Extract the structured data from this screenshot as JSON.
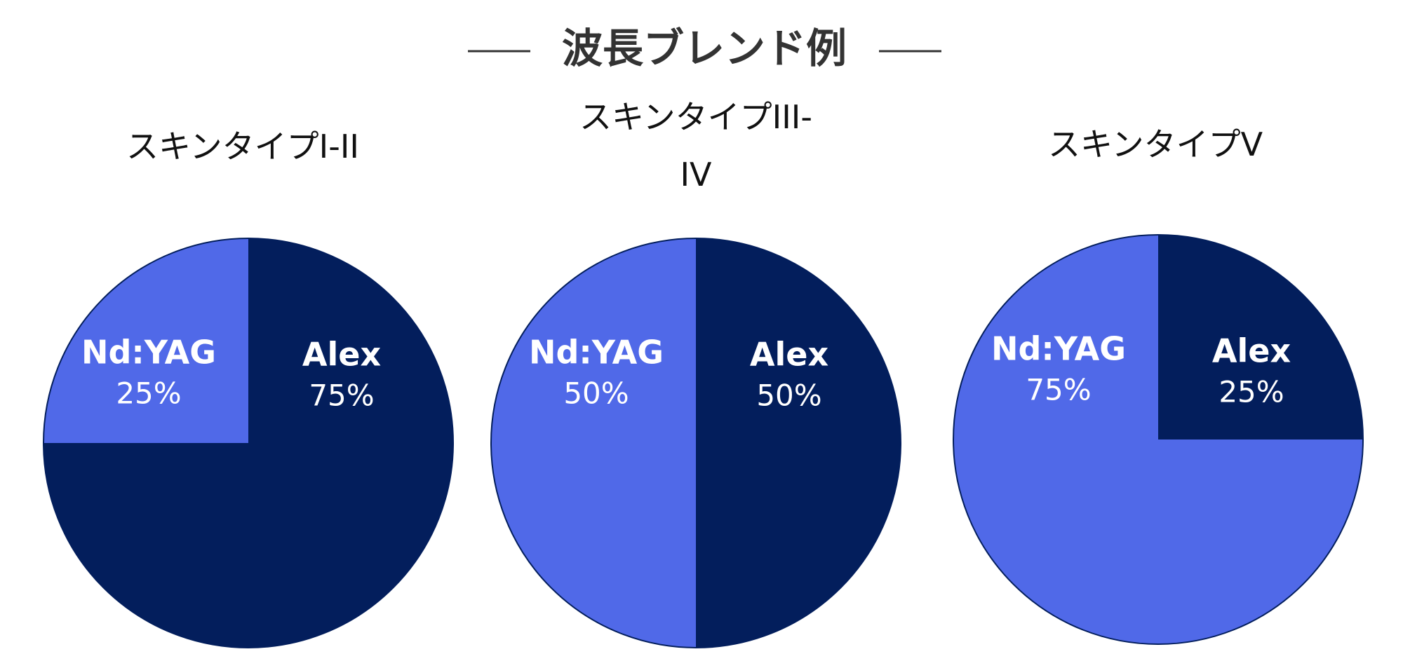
{
  "title": "波長ブレンド例",
  "chart_data": [
    {
      "type": "pie",
      "title": "スキンタイプI-II",
      "categories": [
        "Alex",
        "Nd:YAG"
      ],
      "values": [
        75,
        25
      ],
      "value_labels": [
        "75%",
        "25%"
      ],
      "colors": [
        "#031e5c",
        "#5069e8"
      ]
    },
    {
      "type": "pie",
      "title": "スキンタイプIII-IV",
      "categories": [
        "Alex",
        "Nd:YAG"
      ],
      "values": [
        50,
        50
      ],
      "value_labels": [
        "50%",
        "50%"
      ],
      "colors": [
        "#031e5c",
        "#5069e8"
      ]
    },
    {
      "type": "pie",
      "title": "スキンタイプV",
      "categories": [
        "Alex",
        "Nd:YAG"
      ],
      "values": [
        25,
        75
      ],
      "value_labels": [
        "25%",
        "75%"
      ],
      "colors": [
        "#031e5c",
        "#5069e8"
      ]
    }
  ]
}
